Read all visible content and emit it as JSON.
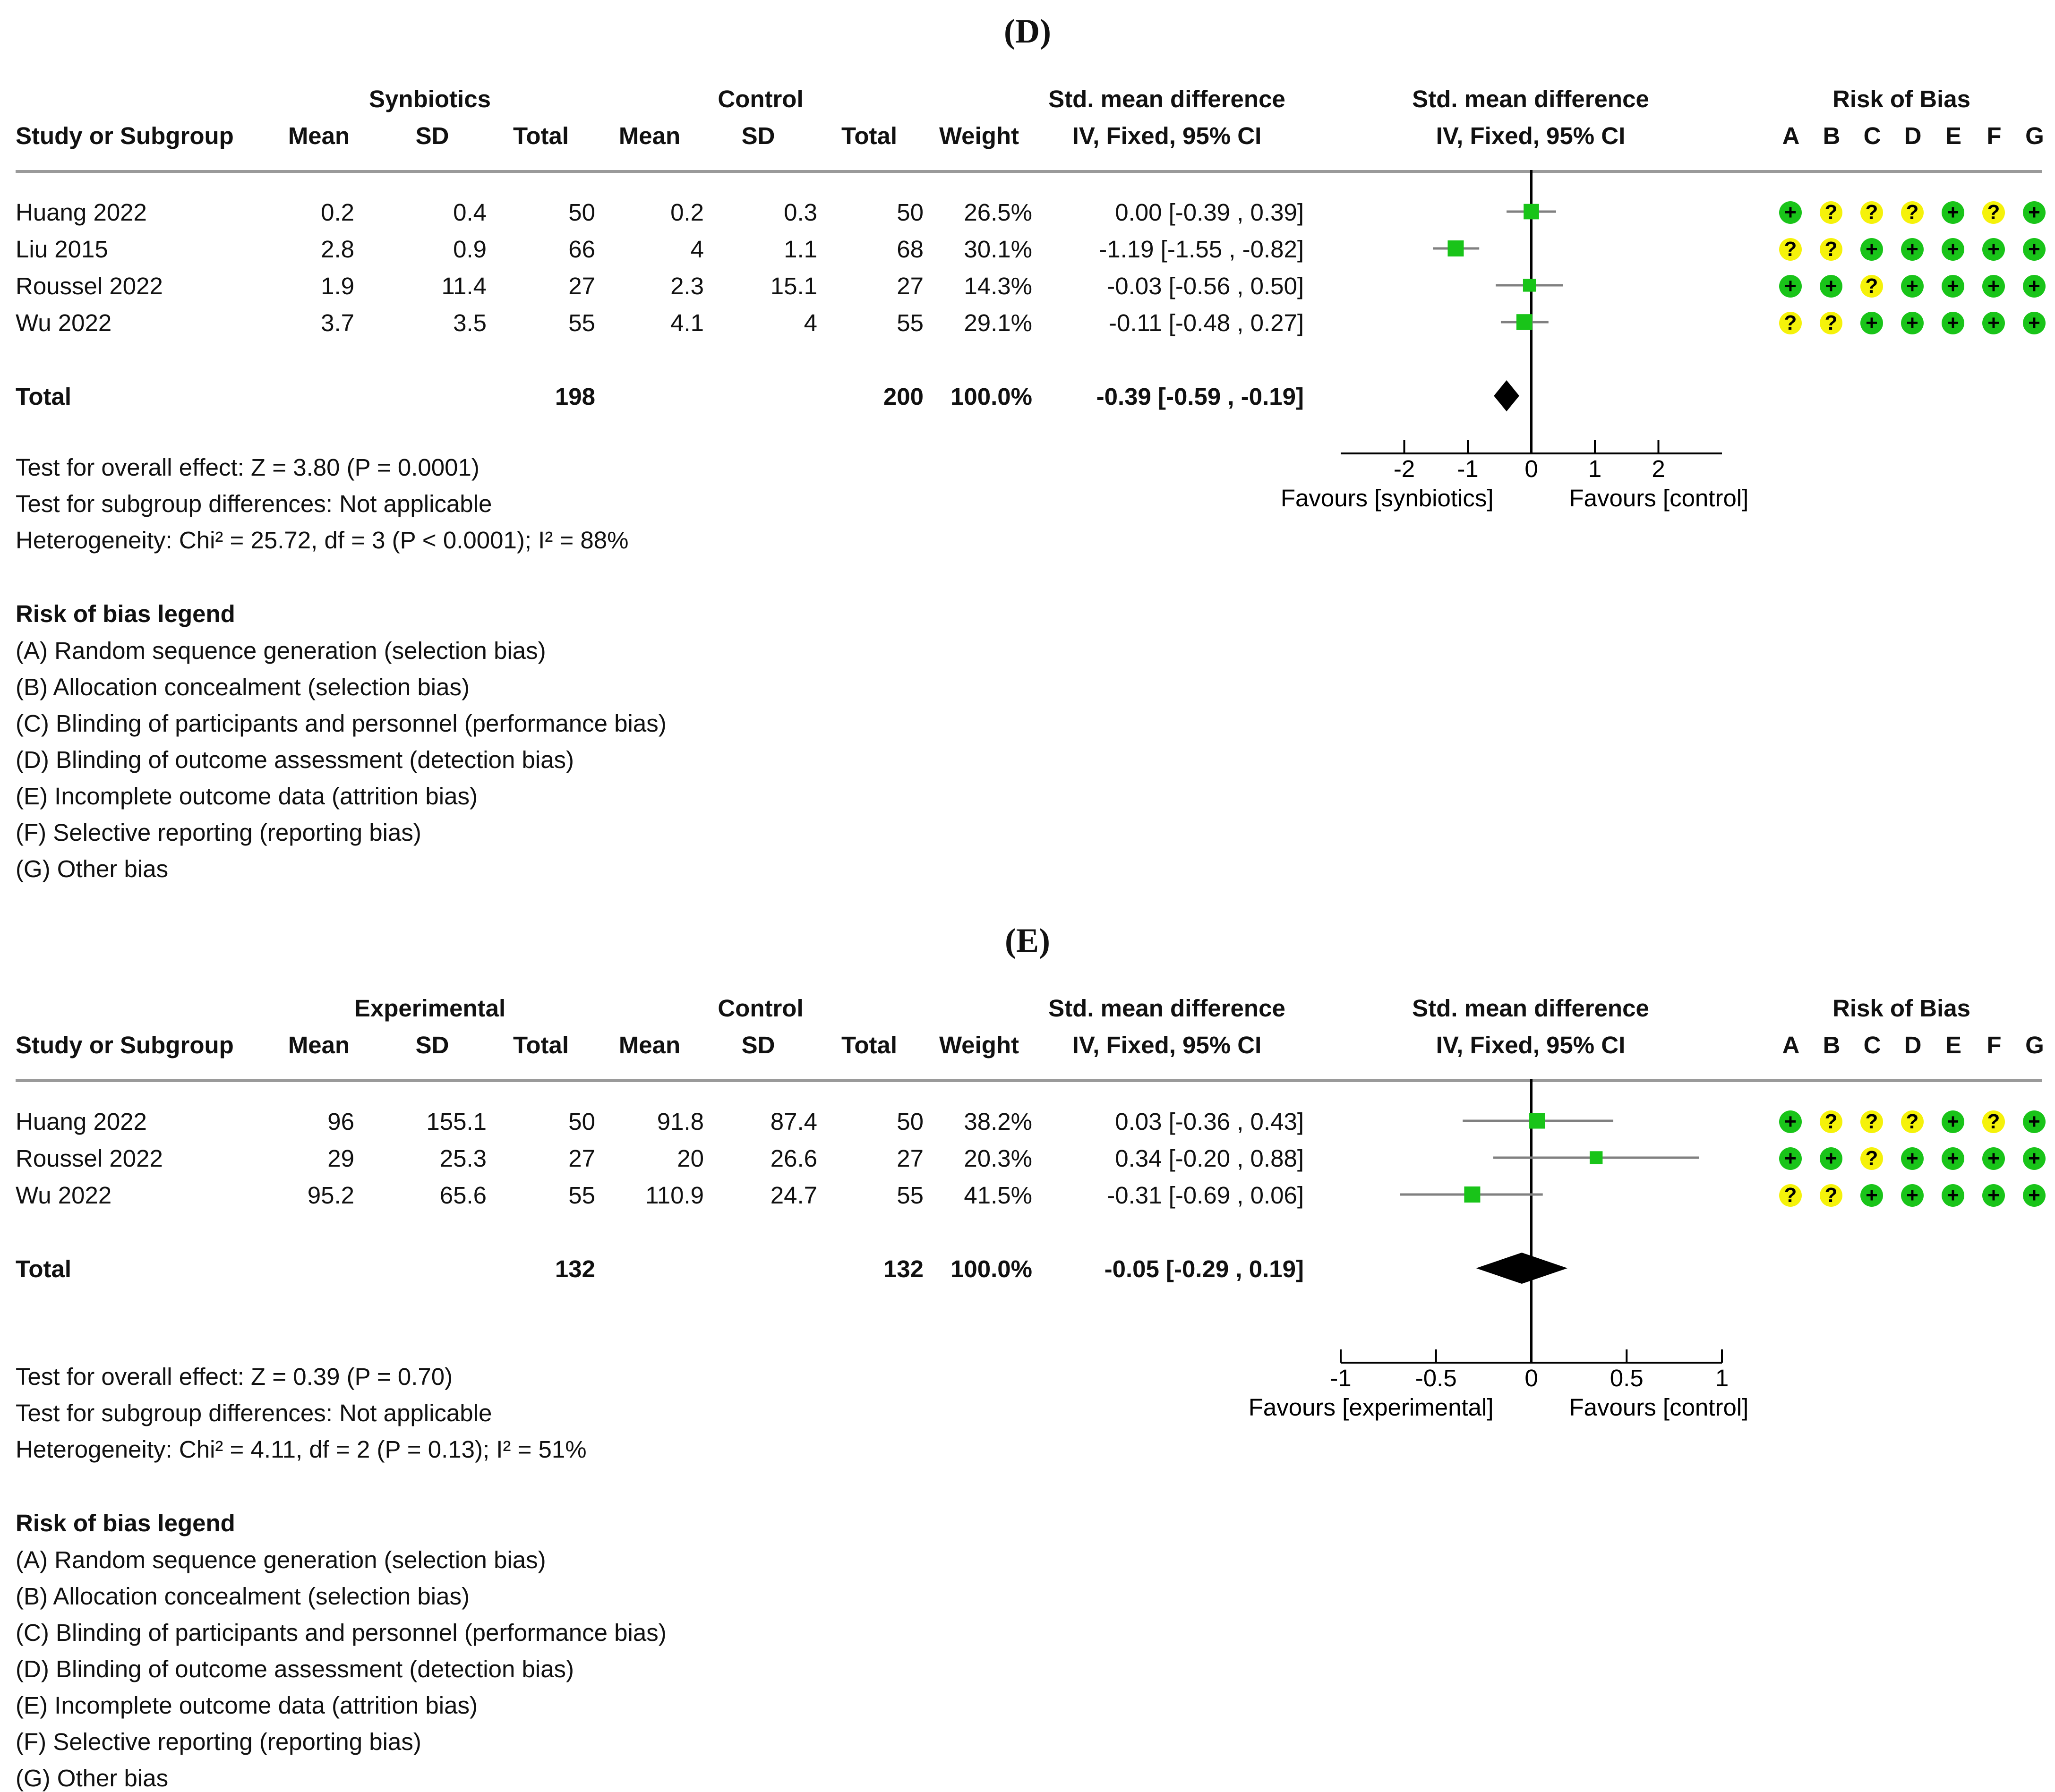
{
  "panels": [
    {
      "label": "(D)",
      "group1": "Synbiotics",
      "group2": "Control",
      "col_headers": {
        "study": "Study or Subgroup",
        "mean1": "Mean",
        "sd1": "SD",
        "total1": "Total",
        "mean2": "Mean",
        "sd2": "SD",
        "total2": "Total",
        "weight": "Weight",
        "effect1": "Std. mean difference",
        "effect2": "IV, Fixed, 95% CI",
        "forest1": "Std. mean difference",
        "forest2": "IV, Fixed, 95% CI",
        "rob": "Risk of Bias"
      },
      "rob_domains": [
        "A",
        "B",
        "C",
        "D",
        "E",
        "F",
        "G"
      ],
      "rows": [
        {
          "study": "Huang 2022",
          "mean1": "0.2",
          "sd1": "0.4",
          "total1": "50",
          "mean2": "0.2",
          "sd2": "0.3",
          "total2": "50",
          "weight": "26.5%",
          "ci_text": "0.00 [-0.39 , 0.39]",
          "rob": [
            "+",
            "?",
            "?",
            "?",
            "+",
            "?",
            "+"
          ]
        },
        {
          "study": "Liu 2015",
          "mean1": "2.8",
          "sd1": "0.9",
          "total1": "66",
          "mean2": "4",
          "sd2": "1.1",
          "total2": "68",
          "weight": "30.1%",
          "ci_text": "-1.19 [-1.55 , -0.82]",
          "rob": [
            "?",
            "?",
            "+",
            "+",
            "+",
            "+",
            "+"
          ]
        },
        {
          "study": "Roussel 2022",
          "mean1": "1.9",
          "sd1": "11.4",
          "total1": "27",
          "mean2": "2.3",
          "sd2": "15.1",
          "total2": "27",
          "weight": "14.3%",
          "ci_text": "-0.03 [-0.56 , 0.50]",
          "rob": [
            "+",
            "+",
            "?",
            "+",
            "+",
            "+",
            "+"
          ]
        },
        {
          "study": "Wu 2022",
          "mean1": "3.7",
          "sd1": "3.5",
          "total1": "55",
          "mean2": "4.1",
          "sd2": "4",
          "total2": "55",
          "weight": "29.1%",
          "ci_text": "-0.11 [-0.48 , 0.27]",
          "rob": [
            "?",
            "?",
            "+",
            "+",
            "+",
            "+",
            "+"
          ]
        }
      ],
      "total": {
        "label": "Total",
        "total1": "198",
        "total2": "200",
        "weight": "100.0%",
        "ci_text": "-0.39 [-0.59 , -0.19]"
      },
      "notes": [
        "Test for overall effect: Z = 3.80 (P = 0.0001)",
        "Test for subgroup differences: Not applicable",
        "Heterogeneity: Chi² = 25.72, df = 3 (P < 0.0001); I² = 88%"
      ],
      "favours_left": "Favours [synbiotics]",
      "favours_right": "Favours [control]",
      "legend_title": "Risk of bias legend",
      "legend": [
        "(A) Random sequence generation (selection bias)",
        "(B) Allocation concealment (selection bias)",
        "(C) Blinding of participants and personnel (performance bias)",
        "(D) Blinding of outcome assessment (detection bias)",
        "(E) Incomplete outcome data (attrition bias)",
        "(F) Selective reporting (reporting bias)",
        "(G) Other bias"
      ]
    },
    {
      "label": "(E)",
      "group1": "Experimental",
      "group2": "Control",
      "col_headers": {
        "study": "Study or Subgroup",
        "mean1": "Mean",
        "sd1": "SD",
        "total1": "Total",
        "mean2": "Mean",
        "sd2": "SD",
        "total2": "Total",
        "weight": "Weight",
        "effect1": "Std. mean difference",
        "effect2": "IV, Fixed, 95% CI",
        "forest1": "Std. mean difference",
        "forest2": "IV, Fixed, 95% CI",
        "rob": "Risk of Bias"
      },
      "rob_domains": [
        "A",
        "B",
        "C",
        "D",
        "E",
        "F",
        "G"
      ],
      "rows": [
        {
          "study": "Huang 2022",
          "mean1": "96",
          "sd1": "155.1",
          "total1": "50",
          "mean2": "91.8",
          "sd2": "87.4",
          "total2": "50",
          "weight": "38.2%",
          "ci_text": "0.03 [-0.36 , 0.43]",
          "rob": [
            "+",
            "?",
            "?",
            "?",
            "+",
            "?",
            "+"
          ]
        },
        {
          "study": "Roussel 2022",
          "mean1": "29",
          "sd1": "25.3",
          "total1": "27",
          "mean2": "20",
          "sd2": "26.6",
          "total2": "27",
          "weight": "20.3%",
          "ci_text": "0.34 [-0.20 , 0.88]",
          "rob": [
            "+",
            "+",
            "?",
            "+",
            "+",
            "+",
            "+"
          ]
        },
        {
          "study": "Wu 2022",
          "mean1": "95.2",
          "sd1": "65.6",
          "total1": "55",
          "mean2": "110.9",
          "sd2": "24.7",
          "total2": "55",
          "weight": "41.5%",
          "ci_text": "-0.31 [-0.69 , 0.06]",
          "rob": [
            "?",
            "?",
            "+",
            "+",
            "+",
            "+",
            "+"
          ]
        }
      ],
      "total": {
        "label": "Total",
        "total1": "132",
        "total2": "132",
        "weight": "100.0%",
        "ci_text": "-0.05 [-0.29 , 0.19]"
      },
      "notes": [
        "Test for overall effect: Z = 0.39 (P = 0.70)",
        "Test for subgroup differences: Not applicable",
        "Heterogeneity: Chi² = 4.11, df = 2 (P = 0.13); I² = 51%"
      ],
      "favours_left": "Favours [experimental]",
      "favours_right": "Favours [control]",
      "legend_title": "Risk of bias legend",
      "legend": [
        "(A) Random sequence generation (selection bias)",
        "(B) Allocation concealment (selection bias)",
        "(C) Blinding of participants and personnel (performance bias)",
        "(D) Blinding of outcome assessment (detection bias)",
        "(E) Incomplete outcome data (attrition bias)",
        "(F) Selective reporting (reporting bias)",
        "(G) Other bias"
      ]
    }
  ],
  "colors": {
    "study_marker": "#19c419",
    "pooled_diamond": "#000000",
    "ci_line": "#808080",
    "rob_low": "#19c419",
    "rob_unclear": "#f5f20a"
  },
  "chart_data": [
    {
      "type": "scatter",
      "subtype": "forest-plot",
      "title": "(D)",
      "xlabel_left": "Favours [synbiotics]",
      "xlabel_right": "Favours [control]",
      "xlim": [
        -3,
        3
      ],
      "xticks": [
        -2,
        -1,
        0,
        1,
        2
      ],
      "xtick_labels": [
        "-2",
        "-1",
        "0",
        "1",
        "2"
      ],
      "studies": [
        {
          "name": "Huang 2022",
          "estimate": 0.0,
          "lower": -0.39,
          "upper": 0.39,
          "weight": 26.5
        },
        {
          "name": "Liu 2015",
          "estimate": -1.19,
          "lower": -1.55,
          "upper": -0.82,
          "weight": 30.1
        },
        {
          "name": "Roussel 2022",
          "estimate": -0.03,
          "lower": -0.56,
          "upper": 0.5,
          "weight": 14.3
        },
        {
          "name": "Wu 2022",
          "estimate": -0.11,
          "lower": -0.48,
          "upper": 0.27,
          "weight": 29.1
        }
      ],
      "pooled": {
        "name": "Total",
        "estimate": -0.39,
        "lower": -0.59,
        "upper": -0.19
      }
    },
    {
      "type": "scatter",
      "subtype": "forest-plot",
      "title": "(E)",
      "xlabel_left": "Favours [experimental]",
      "xlabel_right": "Favours [control]",
      "xlim": [
        -1,
        1
      ],
      "xticks": [
        -1,
        -0.5,
        0,
        0.5,
        1
      ],
      "xtick_labels": [
        "-1",
        "-0.5",
        "0",
        "0.5",
        "1"
      ],
      "studies": [
        {
          "name": "Huang 2022",
          "estimate": 0.03,
          "lower": -0.36,
          "upper": 0.43,
          "weight": 38.2
        },
        {
          "name": "Roussel 2022",
          "estimate": 0.34,
          "lower": -0.2,
          "upper": 0.88,
          "weight": 20.3
        },
        {
          "name": "Wu 2022",
          "estimate": -0.31,
          "lower": -0.69,
          "upper": 0.06,
          "weight": 41.5
        }
      ],
      "pooled": {
        "name": "Total",
        "estimate": -0.05,
        "lower": -0.29,
        "upper": 0.19
      }
    }
  ]
}
